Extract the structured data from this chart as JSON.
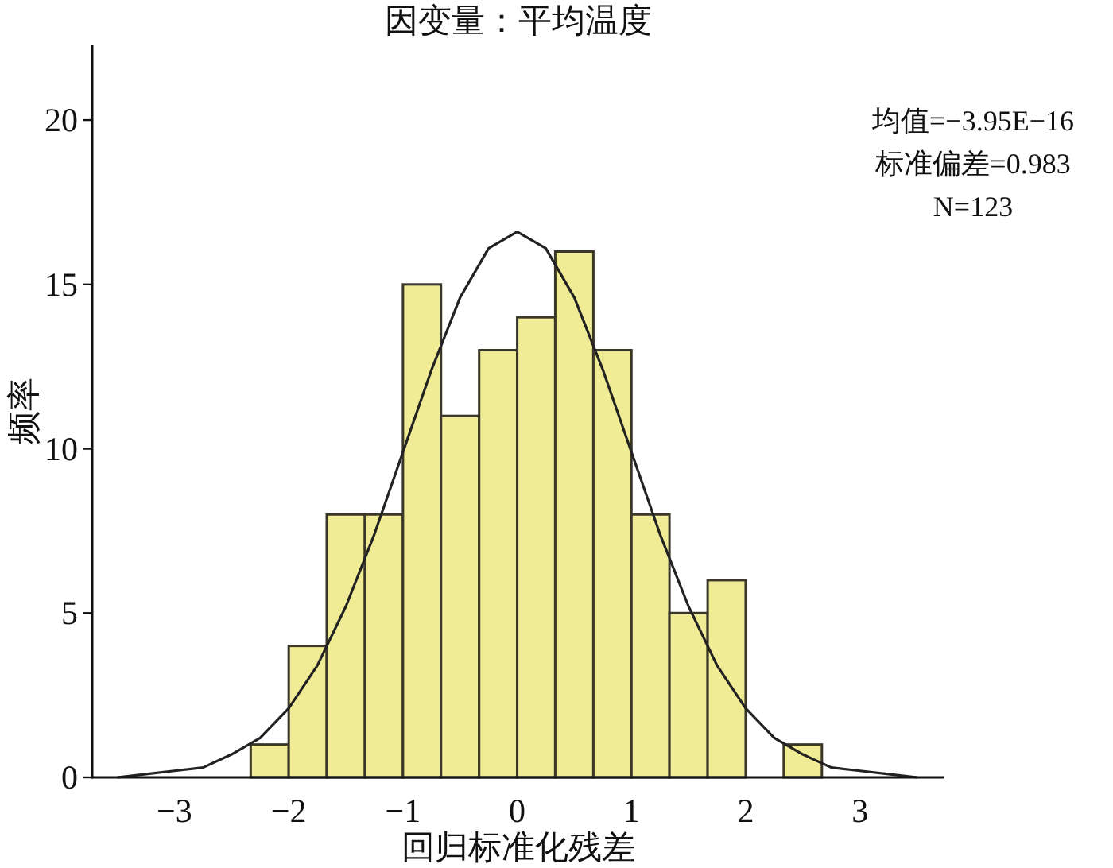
{
  "chart_data": {
    "type": "histogram",
    "title": "因变量：平均温度",
    "xlabel": "回归标准化残差",
    "ylabel": "频率",
    "annotations": [
      "均值=−3.95E−16",
      "标准偏差=0.983",
      "N=123"
    ],
    "bins": [
      -2.333,
      -2.0,
      -1.667,
      -1.333,
      -1.0,
      -0.667,
      -0.333,
      0.0,
      0.333,
      0.667,
      1.0,
      1.333,
      1.667,
      2.0,
      2.333,
      2.667
    ],
    "values": [
      1,
      4,
      8,
      8,
      15,
      11,
      13,
      14,
      16,
      13,
      8,
      5,
      6,
      0,
      1
    ],
    "color": "#f0ec96",
    "series": [
      {
        "type": "line",
        "color": "#222222",
        "x": [
          -3.5,
          -3.25,
          -3.0,
          -2.75,
          -2.5,
          -2.25,
          -2.0,
          -1.75,
          -1.5,
          -1.25,
          -1.0,
          -0.75,
          -0.5,
          -0.25,
          0.0,
          0.25,
          0.5,
          0.75,
          1.0,
          1.25,
          1.5,
          1.75,
          2.0,
          2.25,
          2.5,
          2.75,
          3.0,
          3.25,
          3.5
        ],
        "values": [
          0.0,
          0.1,
          0.2,
          0.3,
          0.7,
          1.2,
          2.1,
          3.4,
          5.2,
          7.4,
          9.9,
          12.4,
          14.6,
          16.1,
          16.6,
          16.1,
          14.6,
          12.4,
          9.9,
          7.4,
          5.2,
          3.4,
          2.1,
          1.2,
          0.7,
          0.3,
          0.2,
          0.1,
          0.0
        ]
      }
    ],
    "xlim": [
      -3.72,
      3.74
    ],
    "ylim": [
      0,
      22.3
    ],
    "xticks": [
      {
        "value": -3,
        "label": "−3"
      },
      {
        "value": -2,
        "label": "−2"
      },
      {
        "value": -1,
        "label": "−1"
      },
      0,
      1,
      2,
      3
    ],
    "yticks": [
      0,
      5,
      10,
      15,
      20
    ],
    "grid": false
  }
}
